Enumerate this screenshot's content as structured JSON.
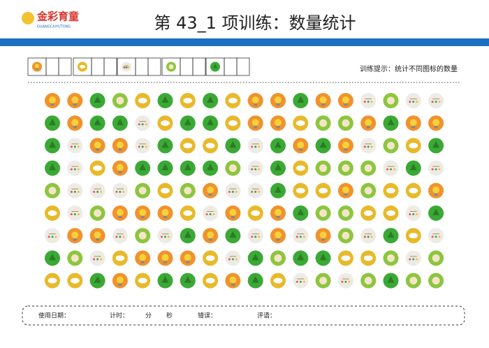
{
  "header": {
    "logo": "金彩育童",
    "logo_sub": "GUANGCAIYUTONG",
    "title": "第 43_1 项训练：数量统计"
  },
  "hint": "训练提示：统计不同图标的数量",
  "footer": {
    "date": "使用日期：",
    "timer": "计时：",
    "minutes": "分",
    "seconds": "秒",
    "errors": "错误：",
    "comment": "评语："
  }
}
